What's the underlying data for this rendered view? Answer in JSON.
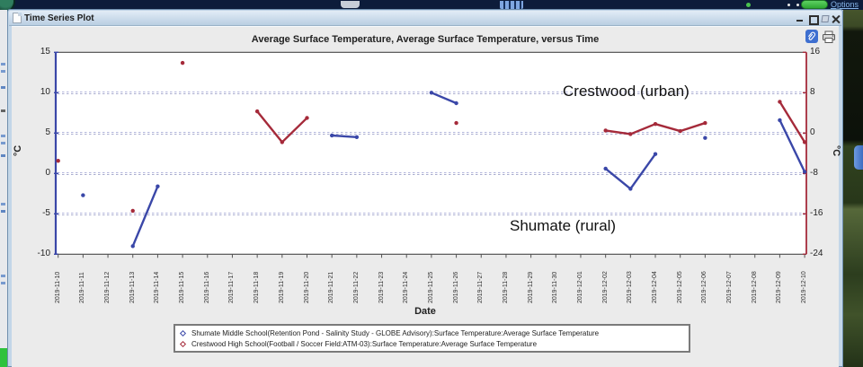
{
  "browser_chrome": {
    "options_label": "Options"
  },
  "window": {
    "title": "Time Series Plot",
    "controls": [
      "minimize",
      "maximize",
      "detach",
      "close"
    ],
    "toolbar_icons": [
      "paperclip-icon",
      "printer-icon"
    ]
  },
  "chart_data": {
    "type": "line",
    "title": "Average Surface Temperature, Average Surface Temperature, versus Time",
    "xlabel": "Date",
    "grid": true,
    "legend_position": "bottom",
    "x_dates": [
      "2019-11-10",
      "2019-11-11",
      "2019-11-12",
      "2019-11-13",
      "2019-11-14",
      "2019-11-15",
      "2019-11-16",
      "2019-11-17",
      "2019-11-18",
      "2019-11-19",
      "2019-11-20",
      "2019-11-21",
      "2019-11-22",
      "2019-11-23",
      "2019-11-24",
      "2019-11-25",
      "2019-11-26",
      "2019-11-27",
      "2019-11-28",
      "2019-11-29",
      "2019-11-30",
      "2019-12-01",
      "2019-12-02",
      "2019-12-03",
      "2019-12-04",
      "2019-12-05",
      "2019-12-06",
      "2019-12-07",
      "2019-12-08",
      "2019-12-09",
      "2019-12-10"
    ],
    "left_axis": {
      "label": "°C",
      "min": -10,
      "max": 15,
      "ticks": [
        15,
        10,
        5,
        0,
        -5,
        -10
      ],
      "color": "#3A47A8"
    },
    "right_axis": {
      "label": "°C",
      "min": -24,
      "max": 16,
      "ticks": [
        16,
        8,
        0,
        -8,
        -16,
        -24
      ],
      "color": "#A52A3A"
    },
    "grid_levels_left": [
      10,
      5,
      0,
      -5
    ],
    "series": [
      {
        "name": "Shumate Middle School(Retention Pond - Salinity Study - GLOBE Advisory):Surface Temperature:Average Surface Temperature",
        "axis": "left",
        "color": "#3A47A8",
        "segments": [
          [
            [
              "2019-11-11",
              -2.7
            ]
          ],
          [
            [
              "2019-11-13",
              -9.0
            ],
            [
              "2019-11-14",
              -1.6
            ]
          ],
          [
            [
              "2019-11-21",
              4.7
            ],
            [
              "2019-11-22",
              4.5
            ]
          ],
          [
            [
              "2019-11-25",
              10.0
            ],
            [
              "2019-11-26",
              8.7
            ]
          ],
          [
            [
              "2019-12-02",
              0.6
            ],
            [
              "2019-12-03",
              -1.9
            ],
            [
              "2019-12-04",
              2.4
            ]
          ],
          [
            [
              "2019-12-06",
              4.4
            ]
          ],
          [
            [
              "2019-12-09",
              6.6
            ],
            [
              "2019-12-10",
              0.2
            ]
          ]
        ]
      },
      {
        "name": "Crestwood High School(Football / Soccer Field:ATM-03):Surface Temperature:Average Surface Temperature",
        "axis": "right",
        "color": "#A52A3A",
        "segments": [
          [
            [
              "2019-11-10",
              -5.5
            ]
          ],
          [
            [
              "2019-11-13",
              -15.4
            ]
          ],
          [
            [
              "2019-11-15",
              13.9
            ]
          ],
          [
            [
              "2019-11-18",
              4.3
            ],
            [
              "2019-11-19",
              -1.8
            ],
            [
              "2019-11-20",
              3.0
            ]
          ],
          [
            [
              "2019-11-26",
              2.0
            ]
          ],
          [
            [
              "2019-12-02",
              0.5
            ],
            [
              "2019-12-03",
              -0.2
            ],
            [
              "2019-12-04",
              1.8
            ],
            [
              "2019-12-05",
              0.4
            ],
            [
              "2019-12-06",
              2.0
            ]
          ],
          [
            [
              "2019-12-09",
              6.2
            ],
            [
              "2019-12-10",
              -1.8
            ]
          ]
        ]
      }
    ],
    "annotations": [
      {
        "text": "Crestwood (urban)",
        "left": 626,
        "top": 92
      },
      {
        "text": "Shumate (rural)",
        "left": 567,
        "top": 242
      }
    ]
  }
}
